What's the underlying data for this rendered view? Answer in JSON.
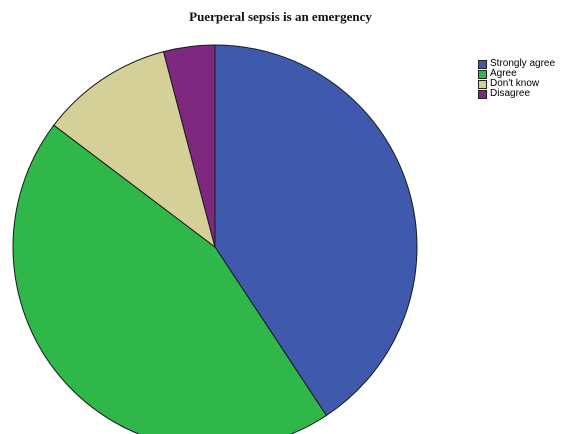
{
  "chart_data": {
    "type": "pie",
    "title": "Puerperal sepsis is an emergency",
    "categories": [
      "Strongly agree",
      "Agree",
      "Don't know",
      "Disagree"
    ],
    "values": [
      40.7,
      44.6,
      10.6,
      4.1
    ],
    "colors": [
      "#3f59ad",
      "#2fb74a",
      "#d5cf98",
      "#7e297f"
    ],
    "start_angle_deg": 0,
    "direction": "clockwise",
    "legend": "top-right"
  }
}
